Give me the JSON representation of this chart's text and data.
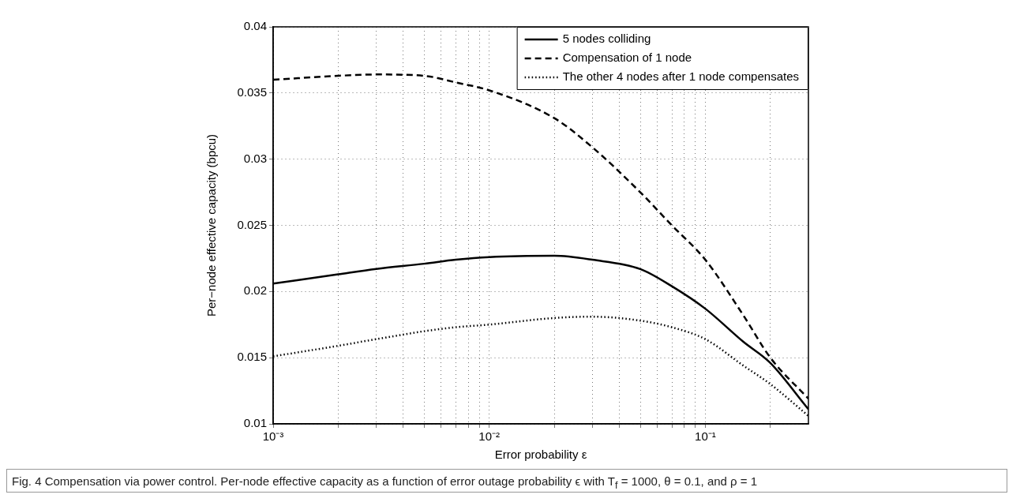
{
  "chart_data": {
    "type": "line",
    "xlabel": "Error probability ε",
    "ylabel": "Per−node effective capacity (bpcu)",
    "log": "x",
    "grid": true,
    "legend": "top right",
    "marker": "none",
    "xlim": [
      0.001,
      0.3
    ],
    "ylim": [
      0.01,
      0.04
    ],
    "xticks": [
      {
        "value": 0.001,
        "label": "10⁻³"
      },
      {
        "value": 0.002,
        "label": null
      },
      {
        "value": 0.003,
        "label": null
      },
      {
        "value": 0.004,
        "label": null
      },
      {
        "value": 0.005,
        "label": null
      },
      {
        "value": 0.006,
        "label": null
      },
      {
        "value": 0.007,
        "label": null
      },
      {
        "value": 0.008,
        "label": null
      },
      {
        "value": 0.009,
        "label": null
      },
      {
        "value": 0.01,
        "label": "10⁻²"
      },
      {
        "value": 0.02,
        "label": null
      },
      {
        "value": 0.03,
        "label": null
      },
      {
        "value": 0.04,
        "label": null
      },
      {
        "value": 0.05,
        "label": null
      },
      {
        "value": 0.06,
        "label": null
      },
      {
        "value": 0.07,
        "label": null
      },
      {
        "value": 0.08,
        "label": null
      },
      {
        "value": 0.09,
        "label": null
      },
      {
        "value": 0.1,
        "label": "10⁻¹"
      },
      {
        "value": 0.2,
        "label": null
      }
    ],
    "yticks": [
      0.01,
      0.015,
      0.02,
      0.025,
      0.03,
      0.035,
      0.04
    ],
    "x": [
      0.001,
      0.002,
      0.003,
      0.005,
      0.007,
      0.01,
      0.02,
      0.03,
      0.05,
      0.07,
      0.1,
      0.15,
      0.2,
      0.3
    ],
    "series": [
      {
        "name": "5 nodes colliding",
        "color": "#000000",
        "line_style": "solid",
        "values": [
          0.0206,
          0.0213,
          0.0217,
          0.0221,
          0.0224,
          0.0226,
          0.0227,
          0.0224,
          0.0217,
          0.0204,
          0.0187,
          0.0162,
          0.0146,
          0.0111
        ]
      },
      {
        "name": "Compensation of 1 node",
        "color": "#000000",
        "line_style": "dashed",
        "values": [
          0.036,
          0.0363,
          0.0364,
          0.0363,
          0.0358,
          0.0352,
          0.0331,
          0.0309,
          0.0275,
          0.025,
          0.0224,
          0.0182,
          0.015,
          0.0119
        ]
      },
      {
        "name": "The other 4 nodes after 1 node compensates",
        "color": "#000000",
        "line_style": "dotted",
        "values": [
          0.0151,
          0.0159,
          0.0164,
          0.017,
          0.0173,
          0.0175,
          0.018,
          0.0181,
          0.0178,
          0.0173,
          0.0164,
          0.0144,
          0.013,
          0.0106
        ]
      }
    ],
    "annotations": [
      "Fig. 4 Compensation via power control. Per-node effective capacity as a function of error outage probability ϵ with T$_{f}$ = 1000, θ = 0.1, and ρ = 1"
    ]
  }
}
